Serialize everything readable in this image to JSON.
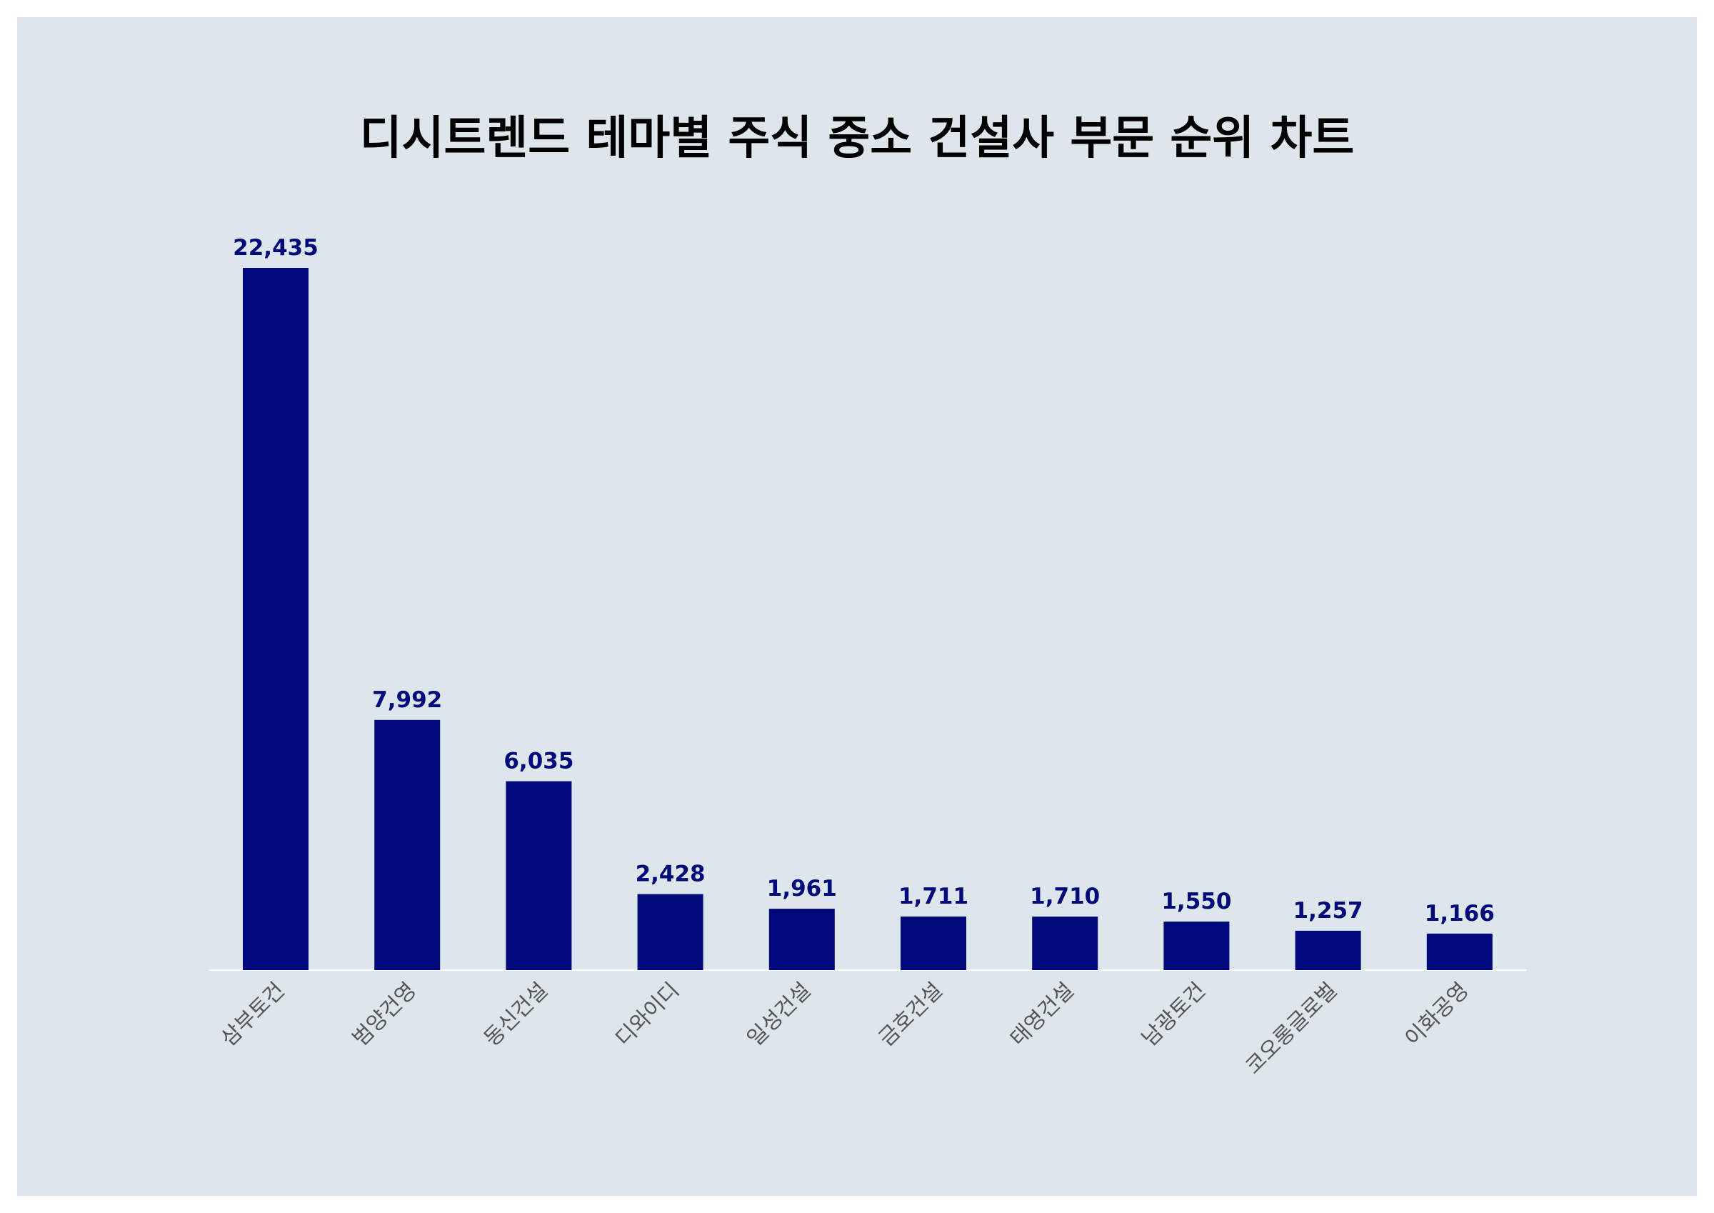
{
  "title": "디시트렌드 테마별 주식 중소 건설사 부문 순위 차트",
  "colors": {
    "background": "#dce6eb",
    "bar": "#000a7a",
    "value_label": "#000a7a",
    "tick_label": "#555555",
    "axis_line": "#ffffff"
  },
  "chart_data": {
    "type": "bar",
    "title": "디시트렌드 테마별 주식 중소 건설사 부문 순위 차트",
    "xlabel": "",
    "ylabel": "",
    "categories": [
      "삼부토건",
      "범양건영",
      "동신건설",
      "디와이디",
      "일성건설",
      "금호건설",
      "태영건설",
      "남광토건",
      "코오롱글로벌",
      "이화공영"
    ],
    "values": [
      22435,
      7992,
      6035,
      2428,
      1961,
      1711,
      1710,
      1550,
      1257,
      1166
    ],
    "value_labels": [
      "22,435",
      "7,992",
      "6,035",
      "2,428",
      "1,961",
      "1,711",
      "1,710",
      "1,550",
      "1,257",
      "1,166"
    ],
    "ylim": [
      0,
      22435
    ],
    "grid": false,
    "legend": "none",
    "tick_label_rotation": "-45deg"
  }
}
